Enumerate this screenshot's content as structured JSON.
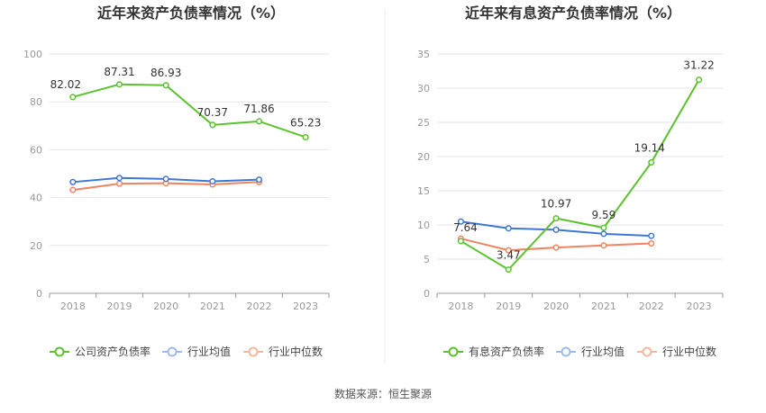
{
  "chart_data": [
    {
      "type": "line",
      "title": "近年来资产负债率情况（%）",
      "categories": [
        "2018",
        "2019",
        "2020",
        "2021",
        "2022",
        "2023"
      ],
      "ylim": [
        0,
        100
      ],
      "yticks": [
        "0",
        "20",
        "40",
        "60",
        "80",
        "100"
      ],
      "series": [
        {
          "name": "公司资产负债率",
          "color": "#5cc12e",
          "values": [
            82.02,
            87.31,
            86.93,
            70.37,
            71.86,
            65.23
          ],
          "labels": [
            "82.02",
            "87.31",
            "86.93",
            "70.37",
            "71.86",
            "65.23"
          ]
        },
        {
          "name": "行业均值",
          "color": "#3e77d4",
          "values": [
            46.5,
            48.2,
            47.8,
            46.8,
            47.5,
            null
          ]
        },
        {
          "name": "行业中位数",
          "color": "#f08461",
          "values": [
            43.2,
            45.8,
            46.0,
            45.5,
            46.5,
            null
          ]
        }
      ]
    },
    {
      "type": "line",
      "title": "近年来有息资产负债率情况（%）",
      "categories": [
        "2018",
        "2019",
        "2020",
        "2021",
        "2022",
        "2023"
      ],
      "ylim": [
        0,
        35
      ],
      "yticks": [
        "0",
        "5",
        "10",
        "15",
        "20",
        "25",
        "30",
        "35"
      ],
      "series": [
        {
          "name": "有息资产负债率",
          "color": "#5cc12e",
          "values": [
            7.64,
            3.47,
            10.97,
            9.59,
            19.14,
            31.22
          ],
          "labels": [
            "7.64",
            "3.47",
            "10.97",
            "9.59",
            "19.14",
            "31.22"
          ]
        },
        {
          "name": "行业均值",
          "color": "#3e77d4",
          "values": [
            10.5,
            9.5,
            9.3,
            8.7,
            8.4,
            null
          ]
        },
        {
          "name": "行业中位数",
          "color": "#f08461",
          "values": [
            8.0,
            6.3,
            6.7,
            7.0,
            7.3,
            null
          ]
        }
      ]
    }
  ],
  "source": "数据来源：恒生聚源"
}
